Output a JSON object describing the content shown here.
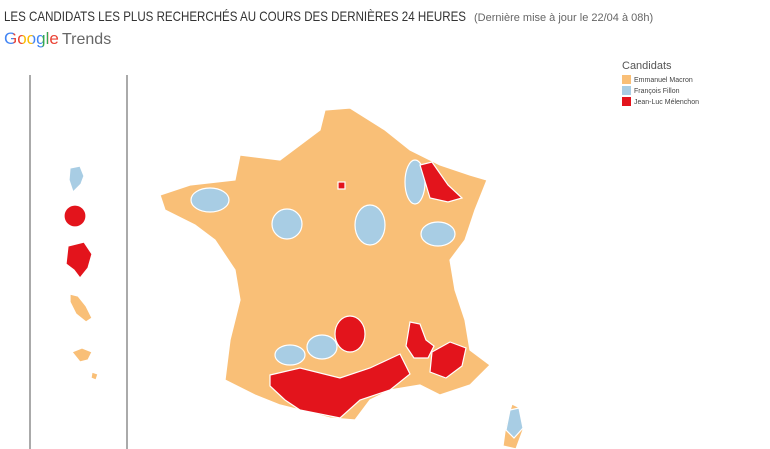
{
  "header": {
    "title": "LES CANDIDATS LES PLUS RECHERCHÉS AU COURS DES DERNIÈRES 24 HEURES",
    "subtitle": "(Dernière mise à jour le 22/04 à 08h)",
    "brand": "Google",
    "product": "Trends"
  },
  "legend": {
    "title": "Candidats",
    "items": [
      {
        "name": "Emmanuel Macron",
        "color": "#f9bf77"
      },
      {
        "name": "François Fillon",
        "color": "#a8cde4"
      },
      {
        "name": "Jean-Luc Mélenchon",
        "color": "#e3141c"
      }
    ]
  }
}
